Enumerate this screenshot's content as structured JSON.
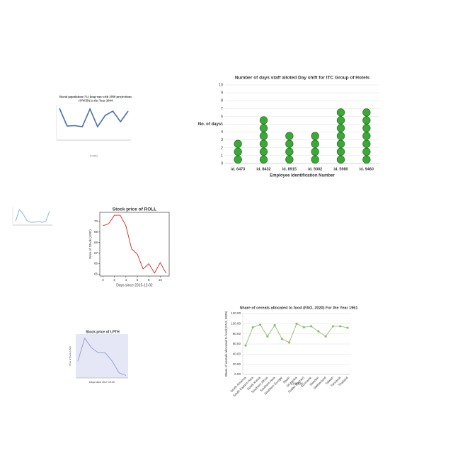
{
  "chart_data": [
    {
      "type": "line",
      "title": "Rural population (%) long-run with 2050 projections (OWID) in the Year 2044",
      "categories": [
        null,
        null,
        null,
        null,
        null,
        null,
        null,
        null,
        null,
        null
      ],
      "values": [
        90,
        40,
        41,
        38,
        88,
        38,
        70,
        82,
        52,
        82
      ],
      "x_label": "Country",
      "color": "#4a6fa5",
      "ylim": [
        0,
        100
      ],
      "grid": false,
      "font": "serif"
    },
    {
      "type": "dot",
      "title": "Number of days staff alloted Day shift for ITC Group of Hotels",
      "categories": [
        "id. 6473",
        "id. 8432",
        "id. 8915",
        "id. 9302",
        "id. 5980",
        "id. 9460"
      ],
      "values": [
        3,
        6,
        4,
        4,
        7,
        7
      ],
      "x_label": "Employee Identification Number",
      "y_label": "No. of days",
      "color": "#3aaa35",
      "ylim": [
        0,
        10
      ],
      "yticks": [
        0,
        1,
        2,
        3,
        4,
        5,
        6,
        7,
        8,
        9,
        10
      ],
      "grid": true
    },
    {
      "type": "line",
      "categories": [
        null,
        null,
        null,
        null,
        null,
        null,
        null,
        null,
        null,
        null
      ],
      "values": [
        20,
        85,
        60,
        25,
        15,
        15,
        20,
        15,
        20,
        75
      ],
      "color": "#7fb0d8",
      "ylim": [
        0,
        100
      ],
      "grid": false
    },
    {
      "type": "line",
      "title": "Stock price of ROLL",
      "x": [
        0,
        1,
        2,
        3,
        4,
        5,
        6,
        7,
        8,
        9,
        10,
        11
      ],
      "values": [
        69.6,
        69.8,
        70.6,
        70.6,
        69.6,
        67.4,
        66.9,
        65.5,
        66.0,
        65.1,
        66.1,
        65.1
      ],
      "x_label": "Days since 2015-12-02",
      "y_label": "Price of Stock (USD)",
      "color": "#e02020",
      "xlim": [
        -0.55,
        11.55
      ],
      "xticks": [
        0,
        2,
        4,
        6,
        8,
        10
      ],
      "ylim": [
        64.825,
        70.875
      ],
      "yticks": [
        65,
        66,
        67,
        68,
        69,
        70
      ],
      "grid": false,
      "frame": true
    },
    {
      "type": "line",
      "title": "Share of cereals allocated to food (FAO, 2020)  For the Year 1961",
      "categories": [
        "South America",
        "South Eastern Asia",
        "South Korea",
        "Southern Africa",
        "Southern Asia",
        "Southern Europe",
        "Spain",
        "Sri Lanka",
        "Sudan (former)",
        "Suriname",
        "Sweden",
        "Switzerland",
        "Taiwan",
        "Tanzania",
        "Thailand"
      ],
      "values": [
        57,
        93,
        98,
        75,
        97,
        70,
        63,
        100,
        93,
        95,
        85,
        75,
        95,
        95,
        92
      ],
      "x_label": "Country",
      "y_label": "Share of cereals allocated to food (FAO, 2020)",
      "color": "#8cc06a",
      "markers": true,
      "ylim": [
        0,
        120
      ],
      "yticks": [
        {
          "value": 0,
          "label": "0.00"
        },
        {
          "value": 20,
          "label": "20.00"
        },
        {
          "value": 40,
          "label": "40.00"
        },
        {
          "value": 60,
          "label": "60.00"
        },
        {
          "value": 80,
          "label": "80.00"
        },
        {
          "value": 100,
          "label": "100.00"
        },
        {
          "value": 120,
          "label": "120.00"
        }
      ],
      "grid": true
    },
    {
      "type": "line",
      "title": "Stock price of LPTH",
      "x": [
        0,
        1,
        2,
        3,
        4,
        5,
        6,
        7
      ],
      "values": [
        4.0,
        9.5,
        7.2,
        6.0,
        6.0,
        4.0,
        1.2,
        0.6
      ],
      "x_label": "Days since 2017-12-30",
      "y_label": "Price of Stock (USD)",
      "color": "#8a9bd0",
      "xlim": [
        -0.3,
        7.3
      ],
      "ylim": [
        0,
        10.5
      ],
      "grid": false,
      "background": "#e6e7f6"
    }
  ]
}
